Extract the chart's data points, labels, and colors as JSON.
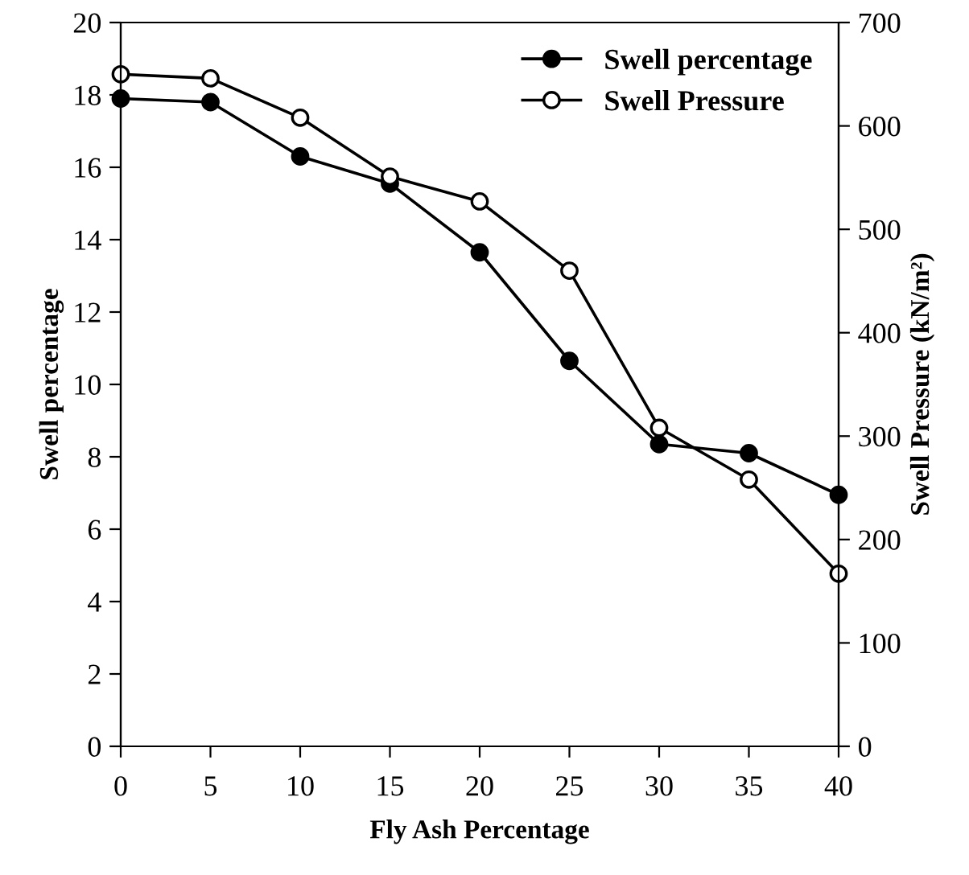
{
  "chart_data": {
    "type": "line",
    "xlabel": "Fly Ash Percentage",
    "ylabel": "Swell percentage",
    "y2label": "Swell Pressure (kN/m²)",
    "x": [
      0,
      5,
      10,
      15,
      20,
      25,
      30,
      35,
      40
    ],
    "series": [
      {
        "name": "Swell percentage",
        "color": "#000000",
        "marker": "circle",
        "values": [
          17.9,
          17.8,
          16.3,
          15.55,
          13.65,
          10.65,
          8.35,
          8.1,
          6.95
        ]
      },
      {
        "name": "Swell Pressure",
        "color": "#000000",
        "marker": "circle",
        "axis": "y2",
        "values": [
          650,
          646,
          608,
          551,
          527,
          460,
          308,
          258,
          167
        ]
      }
    ],
    "xlim": [
      0,
      40
    ],
    "xticks": [
      0,
      5,
      10,
      15,
      20,
      25,
      30,
      35,
      40
    ],
    "ylim": [
      0,
      20
    ],
    "yticks": [
      0,
      2,
      4,
      6,
      8,
      10,
      12,
      14,
      16,
      18,
      20
    ],
    "y2lim": [
      0,
      700
    ],
    "y2ticks": [
      0,
      100,
      200,
      300,
      400,
      500,
      600,
      700
    ],
    "grid": false,
    "legend": "top right",
    "line_style": "solid"
  }
}
